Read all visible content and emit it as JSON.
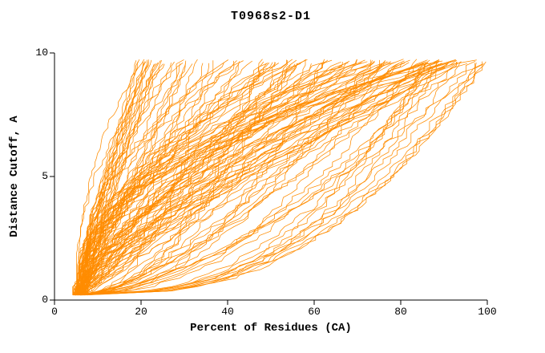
{
  "chart_data": {
    "type": "line",
    "title": "T0968s2-D1",
    "xlabel": "Percent of Residues (CA)",
    "ylabel": "Distance Cutoff, A",
    "xlim": [
      0,
      100
    ],
    "ylim": [
      0,
      10
    ],
    "xticks": [
      0,
      20,
      40,
      60,
      80,
      100
    ],
    "yticks": [
      0,
      5,
      10
    ],
    "grid": false,
    "legend": null,
    "line_color": "#ff8c00",
    "axis_color": "#000000",
    "background": "#ffffff",
    "n_curves": 135,
    "curve_generator": {
      "seed": 20181109,
      "x_start_min": 4.5,
      "x_start_max": 7.0,
      "x_end_min": 18,
      "x_end_max": 100,
      "y_start": 0.2,
      "y_top": 9.65,
      "shape_exp_min": 0.35,
      "shape_exp_max": 2.4,
      "noise": 1.1,
      "points_per_curve": 55
    }
  }
}
